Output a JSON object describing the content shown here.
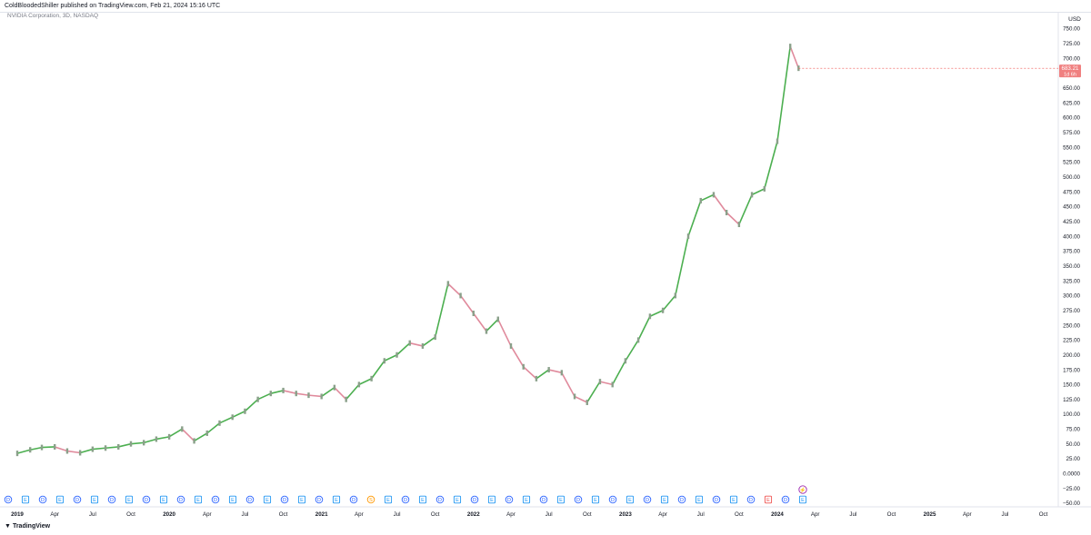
{
  "header": {
    "published_by": "ColdBloodedShiller published on TradingView.com, Feb 21, 2024 15:16 UTC",
    "symbol_line": "NVIDIA Corporation, 3D, NASDAQ"
  },
  "colors": {
    "up": "#26a69a",
    "down": "#ef5350",
    "line_up": "#4caf50",
    "line_down": "#e08a9c",
    "price_tag_bg": "#f08080",
    "event_dividend": "#2962ff",
    "event_earnings": "#2196f3",
    "event_split": "#ff9800",
    "event_earnings_miss": "#ef5350",
    "event_lightning": "#9c27b0"
  },
  "price_tag": {
    "price": "683.21",
    "countdown": "1d 6h"
  },
  "footer": {
    "brand": "TradingView"
  },
  "chart_data": {
    "type": "line",
    "title": "NVIDIA Corporation, 3D, NASDAQ",
    "currency": "USD",
    "ylim": [
      -50,
      760
    ],
    "y_ticks": [
      "750.00",
      "725.00",
      "700.00",
      "675.00",
      "650.00",
      "625.00",
      "600.00",
      "575.00",
      "550.00",
      "525.00",
      "500.00",
      "475.00",
      "450.00",
      "425.00",
      "400.00",
      "375.00",
      "350.00",
      "325.00",
      "300.00",
      "275.00",
      "250.00",
      "225.00",
      "200.00",
      "175.00",
      "150.00",
      "125.00",
      "100.00",
      "75.00",
      "50.00",
      "25.00",
      "0.0000",
      "−25.00",
      "−50.00"
    ],
    "x_ticks": [
      "2019",
      "Apr",
      "Jul",
      "Oct",
      "2020",
      "Apr",
      "Jul",
      "Oct",
      "2021",
      "Apr",
      "Jul",
      "Oct",
      "2022",
      "Apr",
      "Jul",
      "Oct",
      "2023",
      "Apr",
      "Jul",
      "Oct",
      "2024",
      "Apr",
      "Jul",
      "Oct",
      "2025",
      "Apr",
      "Jul",
      "Oct"
    ],
    "grid": false,
    "series": [
      {
        "points": [
          [
            "2019-01-01",
            34
          ],
          [
            "2019-02-01",
            40
          ],
          [
            "2019-03-01",
            44
          ],
          [
            "2019-04-01",
            45
          ],
          [
            "2019-05-01",
            38
          ],
          [
            "2019-06-01",
            35
          ],
          [
            "2019-07-01",
            41
          ],
          [
            "2019-08-01",
            43
          ],
          [
            "2019-09-01",
            45
          ],
          [
            "2019-10-01",
            50
          ],
          [
            "2019-11-01",
            52
          ],
          [
            "2019-12-01",
            58
          ],
          [
            "2020-01-01",
            62
          ],
          [
            "2020-02-01",
            75
          ],
          [
            "2020-03-01",
            55
          ],
          [
            "2020-04-01",
            68
          ],
          [
            "2020-05-01",
            85
          ],
          [
            "2020-06-01",
            95
          ],
          [
            "2020-07-01",
            105
          ],
          [
            "2020-08-01",
            125
          ],
          [
            "2020-09-01",
            135
          ],
          [
            "2020-10-01",
            140
          ],
          [
            "2020-11-01",
            135
          ],
          [
            "2020-12-01",
            132
          ],
          [
            "2021-01-01",
            130
          ],
          [
            "2021-02-01",
            145
          ],
          [
            "2021-03-01",
            125
          ],
          [
            "2021-04-01",
            150
          ],
          [
            "2021-05-01",
            160
          ],
          [
            "2021-06-01",
            190
          ],
          [
            "2021-07-01",
            200
          ],
          [
            "2021-08-01",
            220
          ],
          [
            "2021-09-01",
            215
          ],
          [
            "2021-10-01",
            230
          ],
          [
            "2021-11-01",
            320
          ],
          [
            "2021-12-01",
            300
          ],
          [
            "2022-01-01",
            270
          ],
          [
            "2022-02-01",
            240
          ],
          [
            "2022-03-01",
            260
          ],
          [
            "2022-04-01",
            215
          ],
          [
            "2022-05-01",
            180
          ],
          [
            "2022-06-01",
            160
          ],
          [
            "2022-07-01",
            175
          ],
          [
            "2022-08-01",
            170
          ],
          [
            "2022-09-01",
            130
          ],
          [
            "2022-10-01",
            120
          ],
          [
            "2022-11-01",
            155
          ],
          [
            "2022-12-01",
            150
          ],
          [
            "2023-01-01",
            190
          ],
          [
            "2023-02-01",
            225
          ],
          [
            "2023-03-01",
            265
          ],
          [
            "2023-04-01",
            275
          ],
          [
            "2023-05-01",
            300
          ],
          [
            "2023-06-01",
            400
          ],
          [
            "2023-07-01",
            460
          ],
          [
            "2023-08-01",
            470
          ],
          [
            "2023-09-01",
            440
          ],
          [
            "2023-10-01",
            420
          ],
          [
            "2023-11-01",
            470
          ],
          [
            "2023-12-01",
            480
          ],
          [
            "2024-01-01",
            560
          ],
          [
            "2024-02-01",
            720
          ],
          [
            "2024-02-21",
            683.21
          ]
        ]
      }
    ]
  },
  "events_row": [
    "D",
    "E",
    "D",
    "E",
    "D",
    "E",
    "D",
    "E",
    "D",
    "E",
    "D",
    "E",
    "D",
    "E",
    "D",
    "E",
    "D",
    "E",
    "D",
    "E",
    "D",
    "S",
    "E",
    "D",
    "E",
    "D",
    "E",
    "D",
    "E",
    "D",
    "E",
    "D",
    "E",
    "D",
    "E",
    "D",
    "E",
    "D",
    "E",
    "D",
    "E",
    "D",
    "E",
    "D",
    "E",
    "D",
    "E"
  ]
}
